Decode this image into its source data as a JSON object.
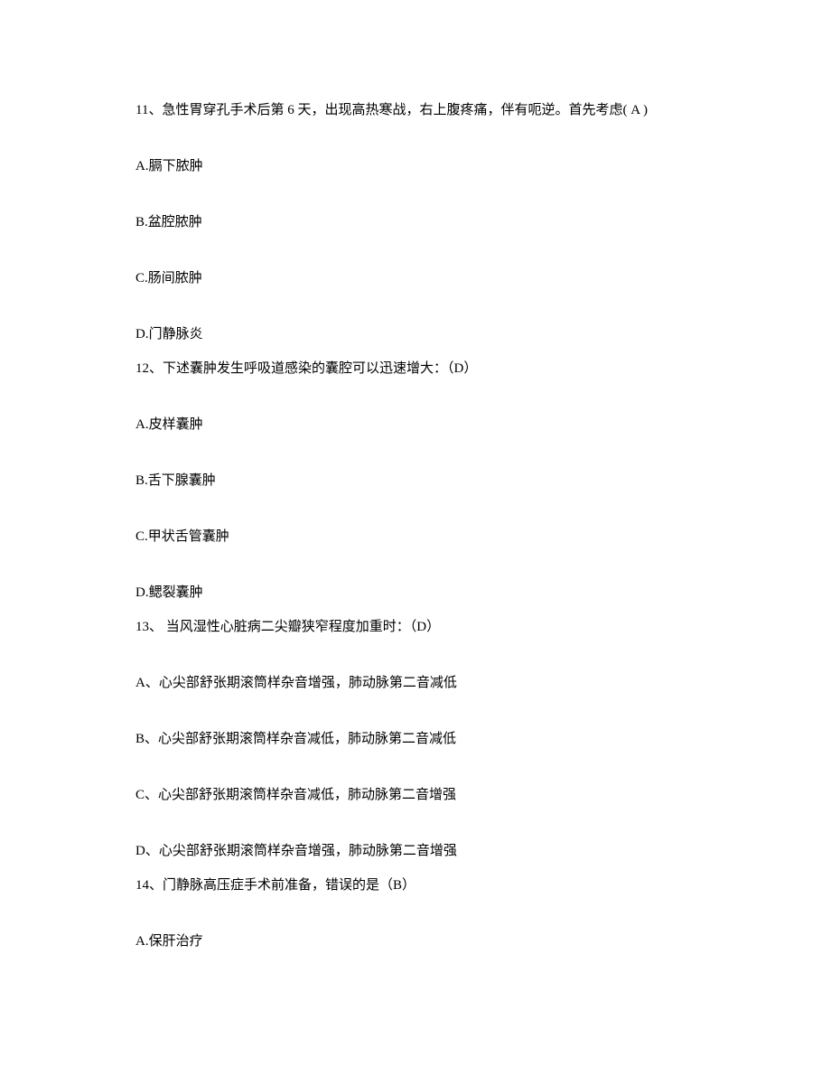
{
  "document": {
    "background_color": "#ffffff",
    "text_color": "#000000",
    "font_size": 15,
    "questions": [
      {
        "stem": "11、急性胃穿孔手术后第 6 天，出现高热寒战，右上腹疼痛，伴有呃逆。首先考虑( A )",
        "options": [
          "A.膈下脓肿",
          "B.盆腔脓肿",
          "C.肠间脓肿",
          "D.门静脉炎"
        ]
      },
      {
        "stem": "12、下述囊肿发生呼吸道感染的囊腔可以迅速增大：（D）",
        "options": [
          "A.皮样囊肿",
          "B.舌下腺囊肿",
          "C.甲状舌管囊肿",
          "D.鳃裂囊肿"
        ]
      },
      {
        "stem": "13、 当风湿性心脏病二尖瓣狭窄程度加重时：（D）",
        "options": [
          "A、心尖部舒张期滚筒样杂音增强，肺动脉第二音减低",
          "B、心尖部舒张期滚筒样杂音减低，肺动脉第二音减低",
          "C、心尖部舒张期滚筒样杂音减低，肺动脉第二音增强",
          "D、心尖部舒张期滚筒样杂音增强，肺动脉第二音增强"
        ]
      },
      {
        "stem": "14、门静脉高压症手术前准备，错误的是（B）",
        "options": [
          "A.保肝治疗"
        ]
      }
    ]
  }
}
